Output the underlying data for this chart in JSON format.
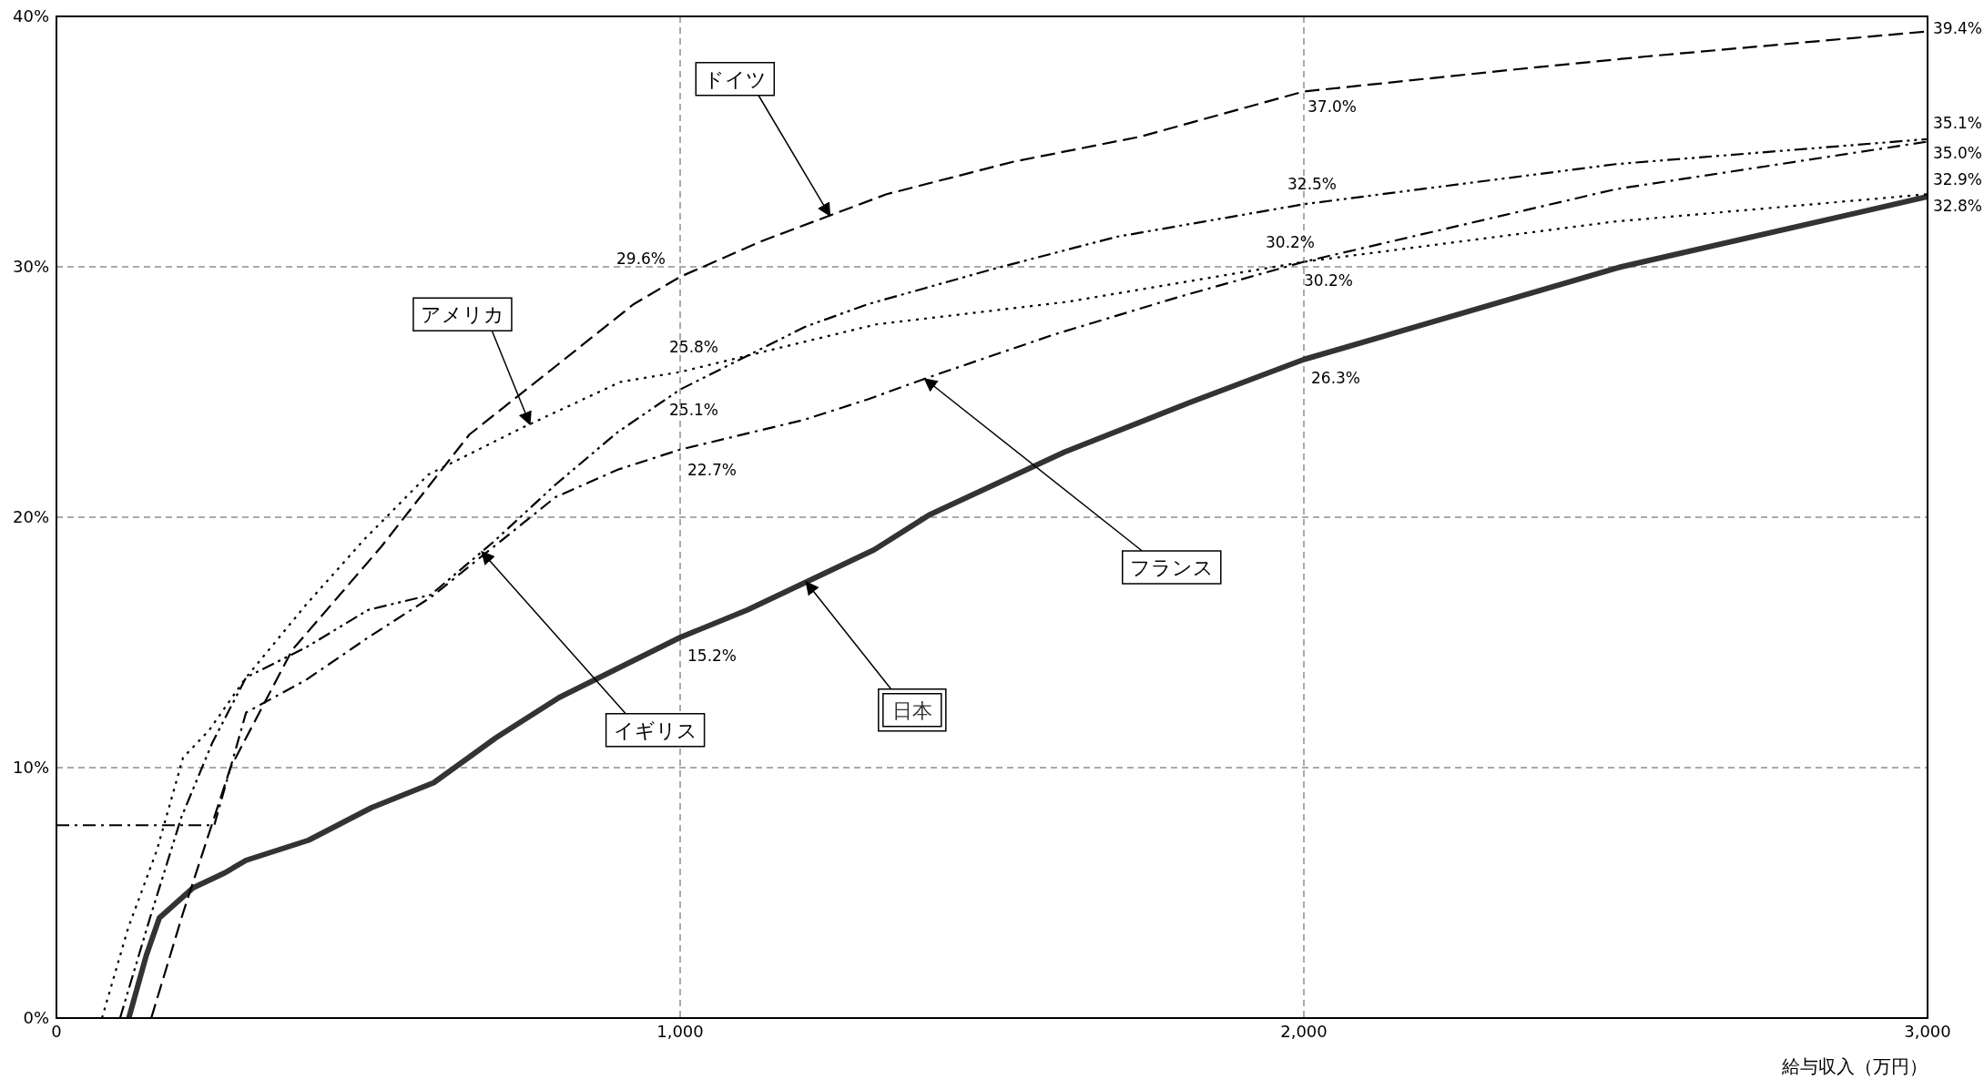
{
  "chart_data": {
    "type": "line",
    "xlabel": "給与収入（万円）",
    "xlim": [
      0,
      3000
    ],
    "xticks": [
      {
        "value": 0,
        "label": "0"
      },
      {
        "value": 1000,
        "label": "1,000"
      },
      {
        "value": 2000,
        "label": "2,000"
      },
      {
        "value": 3000,
        "label": "3,000"
      }
    ],
    "ylim": [
      0,
      40
    ],
    "yticks": [
      {
        "value": 0,
        "label": "0%"
      },
      {
        "value": 10,
        "label": "10%"
      },
      {
        "value": 20,
        "label": "20%"
      },
      {
        "value": 30,
        "label": "30%"
      },
      {
        "value": 40,
        "label": "40%"
      }
    ],
    "grid": true,
    "marker": "none",
    "series": [
      {
        "name": "日本",
        "color": "#333333",
        "line_style": "solid",
        "x": [
          116,
          144,
          165,
          219,
          270,
          304,
          404,
          505,
          605,
          705,
          806,
          1000,
          1108,
          1311,
          1400,
          1616,
          1819,
          2000,
          2509,
          3000
        ],
        "values": [
          0,
          2.5,
          4.0,
          5.2,
          5.8,
          6.3,
          7.1,
          8.4,
          9.4,
          11.2,
          12.8,
          15.2,
          16.3,
          18.7,
          20.1,
          22.6,
          24.6,
          26.3,
          30.0,
          32.8
        ],
        "value_labels": [
          null,
          null,
          null,
          null,
          null,
          null,
          null,
          null,
          null,
          null,
          null,
          "15.2%",
          null,
          null,
          null,
          null,
          null,
          "26.3%",
          null,
          "32.8%"
        ]
      },
      {
        "name": "ドイツ",
        "color": "#000000",
        "line_style": "dashed",
        "x": [
          152,
          203,
          279,
          378,
          520,
          662,
          804,
          925,
          1000,
          1128,
          1331,
          1535,
          1738,
          2000,
          2346,
          2549,
          3000
        ],
        "values": [
          0,
          4.2,
          10.0,
          14.7,
          18.8,
          23.3,
          26.1,
          28.5,
          29.6,
          31.0,
          32.9,
          34.2,
          35.2,
          37.0,
          37.9,
          38.4,
          39.4
        ],
        "value_labels": [
          null,
          null,
          null,
          null,
          null,
          null,
          null,
          null,
          "29.6%",
          null,
          null,
          null,
          null,
          "37.0%",
          null,
          null,
          "39.4%"
        ]
      },
      {
        "name": "アメリカ",
        "color": "#000000",
        "line_style": "dotted",
        "x": [
          73,
          115,
          161,
          203,
          245,
          304,
          400,
          493,
          596,
          749,
          904,
          1000,
          1314,
          1620,
          2000,
          2496,
          3000
        ],
        "values": [
          0,
          3.6,
          6.7,
          10.4,
          11.5,
          13.6,
          16.5,
          19.1,
          21.7,
          23.6,
          25.4,
          25.8,
          27.7,
          28.6,
          30.2,
          31.8,
          32.9
        ],
        "value_labels": [
          null,
          null,
          null,
          null,
          null,
          null,
          null,
          null,
          null,
          null,
          null,
          "25.8%",
          null,
          null,
          "30.2%",
          null,
          "32.9%"
        ]
      },
      {
        "name": "イギリス",
        "color": "#000000",
        "line_style": "dashdotdot",
        "x": [
          102,
          150,
          200,
          250,
          304,
          400,
          500,
          600,
          700,
          800,
          900,
          1000,
          1200,
          1300,
          1500,
          1700,
          2000,
          2500,
          3000
        ],
        "values": [
          0,
          4.0,
          8.0,
          11.0,
          13.6,
          14.8,
          16.3,
          16.9,
          19.0,
          21.3,
          23.4,
          25.1,
          27.6,
          28.5,
          29.9,
          31.2,
          32.5,
          34.1,
          35.1
        ],
        "value_labels": [
          null,
          null,
          null,
          null,
          null,
          null,
          null,
          null,
          null,
          null,
          null,
          "25.1%",
          null,
          null,
          null,
          null,
          "32.5%",
          null,
          "35.1%"
        ]
      },
      {
        "name": "フランス",
        "color": "#000000",
        "line_style": "dashdot",
        "x": [
          0,
          253,
          304,
          400,
          500,
          600,
          700,
          800,
          900,
          1000,
          1200,
          1300,
          1400,
          1600,
          1800,
          2000,
          2500,
          3000
        ],
        "values": [
          7.7,
          7.7,
          12.2,
          13.5,
          15.2,
          16.8,
          18.8,
          20.8,
          21.9,
          22.7,
          23.9,
          24.7,
          25.6,
          27.3,
          28.8,
          30.2,
          33.1,
          35.0
        ],
        "value_labels": [
          null,
          null,
          null,
          null,
          null,
          null,
          null,
          null,
          null,
          "22.7%",
          null,
          null,
          null,
          null,
          null,
          "30.2%",
          null,
          "35.0%"
        ]
      }
    ]
  }
}
